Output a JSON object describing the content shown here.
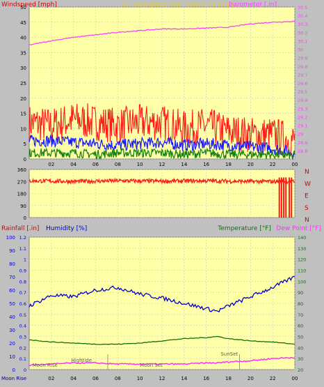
{
  "title": "24 hour graph dae - March 14 2020",
  "colors": {
    "background": "#c0c0c0",
    "plot_bg": "#ffffa8",
    "grid": "#c8c8c8",
    "windspeed": "#ff1a1a",
    "wind_avg": "#1a1aff",
    "wind_low": "#108010",
    "barometer": "#ff40ff",
    "direction": "#ff1a1a",
    "humidity": "#0000c8",
    "temperature": "#107010",
    "dewpoint": "#ff30ff",
    "title": "#d8c840"
  },
  "hour_ticks": [
    "02",
    "04",
    "06",
    "08",
    "10",
    "12",
    "14",
    "16",
    "18",
    "20",
    "22",
    "00"
  ],
  "chart_data": [
    {
      "type": "line",
      "name": "wind-barometer",
      "title": "24 hour graph dae - March 14 2020",
      "ylabel_left": "Windspeed [mph]",
      "ylabel_right": "Barometer [.in]",
      "ylim_left": [
        0,
        50
      ],
      "ylim_right": [
        28.7,
        30.5
      ],
      "yticks_left": [
        "0",
        "5",
        "10",
        "15",
        "20",
        "25",
        "30",
        "35",
        "40",
        "45",
        "50"
      ],
      "yticks_right": [
        "28.8",
        "28.9",
        "29",
        "29.1",
        "29.2",
        "29.3",
        "29.4",
        "29.5",
        "29.6",
        "29.7",
        "29.8",
        "29.9",
        "30",
        "30.1",
        "30.2",
        "30.3",
        "30.4",
        "30.5"
      ],
      "x_hours": [
        0,
        2,
        4,
        6,
        8,
        10,
        12,
        14,
        16,
        18,
        20,
        22,
        24
      ],
      "wind_gust": [
        12,
        11,
        13,
        12,
        11,
        12,
        12,
        10,
        11,
        9,
        8,
        8,
        6
      ],
      "wind_avg": [
        6,
        6,
        5.5,
        5,
        4.5,
        5,
        5.5,
        4.5,
        5,
        4.5,
        4,
        3.5,
        2
      ],
      "wind_low": [
        2,
        2,
        2,
        1.5,
        2,
        2,
        2,
        1.5,
        2,
        1.5,
        1.5,
        1.5,
        1
      ],
      "barometer": [
        30.05,
        30.1,
        30.14,
        30.17,
        30.2,
        30.22,
        30.24,
        30.24,
        30.25,
        30.26,
        30.3,
        30.32,
        30.33
      ]
    },
    {
      "type": "line",
      "name": "wind-direction",
      "ylim": [
        0,
        360
      ],
      "yticks_left": [
        "0",
        "90",
        "180",
        "270",
        "360"
      ],
      "yticks_right": [
        "N",
        "S",
        "E",
        "W",
        "N"
      ],
      "x_hours": [
        0,
        4,
        8,
        12,
        16,
        20,
        22,
        23.9
      ],
      "values": [
        275,
        270,
        275,
        272,
        275,
        270,
        275,
        280
      ]
    },
    {
      "type": "line",
      "name": "humidity-temperature",
      "ylabel_left1": "Rainfall [.in]",
      "ylabel_left2": "Humidity [%]",
      "ylabel_right1": "Temperature [°F]",
      "ylabel_right2": "Dew Point [°F]",
      "ylim_humidity": [
        0,
        100
      ],
      "ylim_rain": [
        0,
        1.2
      ],
      "ylim_temp": [
        20,
        140
      ],
      "yticks_humidity": [
        "0",
        "10",
        "20",
        "30",
        "40",
        "50",
        "60",
        "70",
        "80",
        "90",
        "100"
      ],
      "yticks_rain": [
        "0",
        "0.1",
        "0.2",
        "0.3",
        "0.4",
        "0.5",
        "0.6",
        "0.7",
        "0.8",
        "0.9",
        "1",
        "1.1",
        "1.2"
      ],
      "yticks_temp": [
        "20",
        "30",
        "40",
        "50",
        "60",
        "70",
        "80",
        "90",
        "100",
        "110",
        "120",
        "130",
        "140"
      ],
      "x_hours": [
        0,
        2,
        4,
        6,
        8,
        10,
        12,
        14,
        16,
        17,
        18,
        20,
        22,
        24
      ],
      "humidity": [
        48,
        56,
        55,
        60,
        62,
        57,
        54,
        50,
        46,
        44,
        48,
        55,
        62,
        70
      ],
      "temperature": [
        47,
        45,
        44,
        43,
        43,
        44,
        46,
        48,
        49,
        50,
        48,
        46,
        45,
        43
      ],
      "dewpoint": [
        24,
        25,
        26,
        26,
        25,
        25,
        25,
        25,
        26,
        26,
        27,
        28,
        30,
        31
      ],
      "rainfall": 0,
      "annotations": [
        "Moon Rise",
        "Hightide",
        "Moon Set",
        "SunSet"
      ]
    }
  ]
}
